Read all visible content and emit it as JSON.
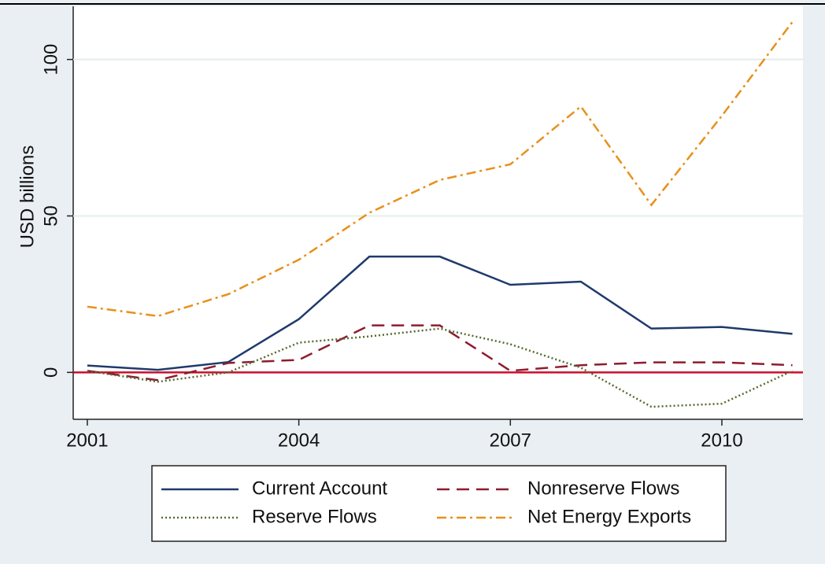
{
  "chart_data": {
    "type": "line",
    "y_label": "USD billions",
    "x": [
      2001,
      2002,
      2003,
      2004,
      2005,
      2006,
      2007,
      2008,
      2009,
      2010,
      2011
    ],
    "series": [
      {
        "name": "Current Account",
        "color": "#1f3a6b",
        "style": "solid",
        "values": [
          2.2,
          0.8,
          3.3,
          17,
          37,
          37,
          28,
          29,
          14,
          14.5,
          12.3
        ]
      },
      {
        "name": "Nonreserve Flows",
        "color": "#8e1c2e",
        "style": "dashed",
        "values": [
          0.5,
          -2.5,
          3,
          4,
          15,
          15,
          0.5,
          2.3,
          3.2,
          3.2,
          2.3
        ]
      },
      {
        "name": "Reserve Flows",
        "color": "#556b2f",
        "style": "dotted",
        "values": [
          0.5,
          -3,
          0,
          9.5,
          11.5,
          14,
          9,
          1.5,
          -11,
          -10,
          0.5
        ]
      },
      {
        "name": "Net Energy Exports",
        "color": "#e8901b",
        "style": "dashdot",
        "values": [
          21,
          18,
          25,
          36,
          51,
          61.5,
          66.5,
          85,
          53.5,
          82,
          112
        ]
      }
    ],
    "xlim": [
      2000.8,
      2011.15
    ],
    "xticks": [
      2001,
      2004,
      2007,
      2010
    ],
    "ylim": [
      -15,
      117
    ],
    "yticks": [
      0,
      50,
      100
    ],
    "grid": true,
    "hline": 0,
    "hline_color": "#c8102e",
    "legend": "bottom"
  }
}
